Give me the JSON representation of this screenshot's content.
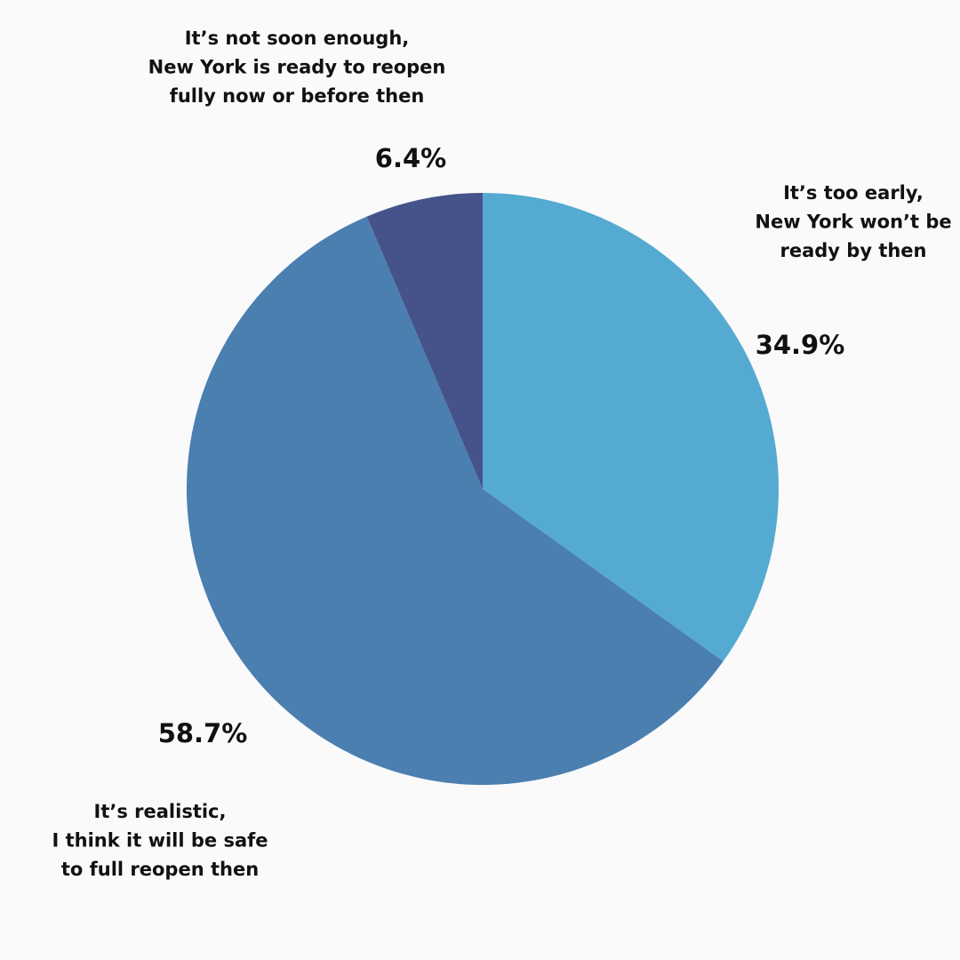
{
  "chart_data": {
    "type": "pie",
    "categories": [
      [
        "It’s too early,",
        "New York won’t be",
        "ready by then"
      ],
      [
        "It’s realistic,",
        "I think it will be safe",
        "to full reopen then"
      ],
      [
        "It’s not soon enough,",
        "New York is ready to reopen",
        "fully now or before then"
      ]
    ],
    "values": [
      34.9,
      58.7,
      6.4
    ],
    "value_labels": [
      "34.9%",
      "58.7%",
      "6.4%"
    ],
    "colors": [
      "#55aad2",
      "#4a7fb0",
      "#46528a"
    ]
  }
}
